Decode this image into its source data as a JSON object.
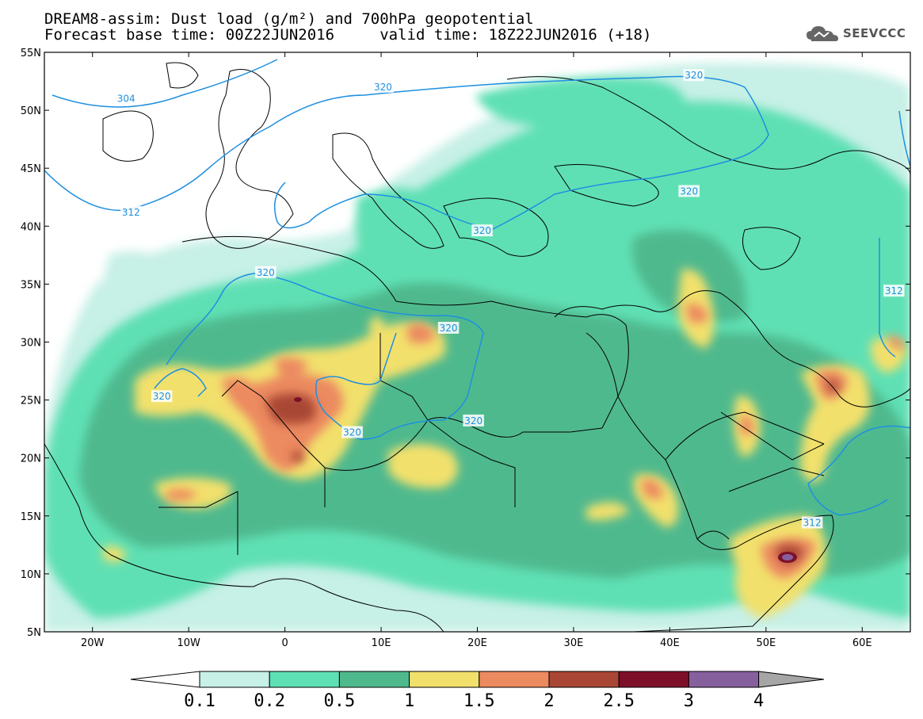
{
  "header": {
    "title_line1": "DREAM8-assim: Dust load (g/m²) and 700hPa geopotential",
    "title_line2": "Forecast base time: 00Z22JUN2016     valid time: 18Z22JUN2016 (+18)"
  },
  "logo": {
    "text": "SEEVCCC",
    "icon": "cloud-icon"
  },
  "map": {
    "lon_range": [
      -25,
      65
    ],
    "lat_range": [
      5,
      55
    ],
    "lat_ticks": [
      {
        "value": 55,
        "label": "55N"
      },
      {
        "value": 50,
        "label": "50N"
      },
      {
        "value": 45,
        "label": "45N"
      },
      {
        "value": 40,
        "label": "40N"
      },
      {
        "value": 35,
        "label": "35N"
      },
      {
        "value": 30,
        "label": "30N"
      },
      {
        "value": 25,
        "label": "25N"
      },
      {
        "value": 20,
        "label": "20N"
      },
      {
        "value": 15,
        "label": "15N"
      },
      {
        "value": 10,
        "label": "10N"
      },
      {
        "value": 5,
        "label": "5N"
      }
    ],
    "lon_ticks": [
      {
        "value": -20,
        "label": "20W"
      },
      {
        "value": -10,
        "label": "10W"
      },
      {
        "value": 0,
        "label": "0"
      },
      {
        "value": 10,
        "label": "10E"
      },
      {
        "value": 20,
        "label": "20E"
      },
      {
        "value": 30,
        "label": "30E"
      },
      {
        "value": 40,
        "label": "40E"
      },
      {
        "value": 50,
        "label": "50E"
      },
      {
        "value": 60,
        "label": "60E"
      }
    ],
    "contour_labels": [
      {
        "text": "304",
        "lon": -16.5,
        "lat": 51.0
      },
      {
        "text": "320",
        "lon": 10.2,
        "lat": 52.0
      },
      {
        "text": "320",
        "lon": 42.5,
        "lat": 53.0
      },
      {
        "text": "312",
        "lon": -16.0,
        "lat": 41.2
      },
      {
        "text": "320",
        "lon": 42.0,
        "lat": 43.0
      },
      {
        "text": "320",
        "lon": 20.5,
        "lat": 39.6
      },
      {
        "text": "320",
        "lon": -2.0,
        "lat": 36.0
      },
      {
        "text": "320",
        "lon": 17.0,
        "lat": 31.2
      },
      {
        "text": "320",
        "lon": -12.8,
        "lat": 25.3
      },
      {
        "text": "320",
        "lon": 7.0,
        "lat": 22.2
      },
      {
        "text": "320",
        "lon": 19.6,
        "lat": 23.2
      },
      {
        "text": "312",
        "lon": 63.3,
        "lat": 34.4
      },
      {
        "text": "312",
        "lon": 54.8,
        "lat": 14.4
      }
    ]
  },
  "colorbar": {
    "levels": [
      "0.1",
      "0.2",
      "0.5",
      "1",
      "1.5",
      "2",
      "2.5",
      "3",
      "4"
    ],
    "colors": [
      "#ffffff",
      "#c7f0e6",
      "#5ee0b4",
      "#4fb98e",
      "#f2e06c",
      "#ec8a60",
      "#a94636",
      "#7e0f28",
      "#86609c",
      "#a6a6a6"
    ]
  },
  "colors": {
    "geopotential": "#1e8fe0",
    "border": "#000000",
    "land_bg": "#ffffff"
  }
}
